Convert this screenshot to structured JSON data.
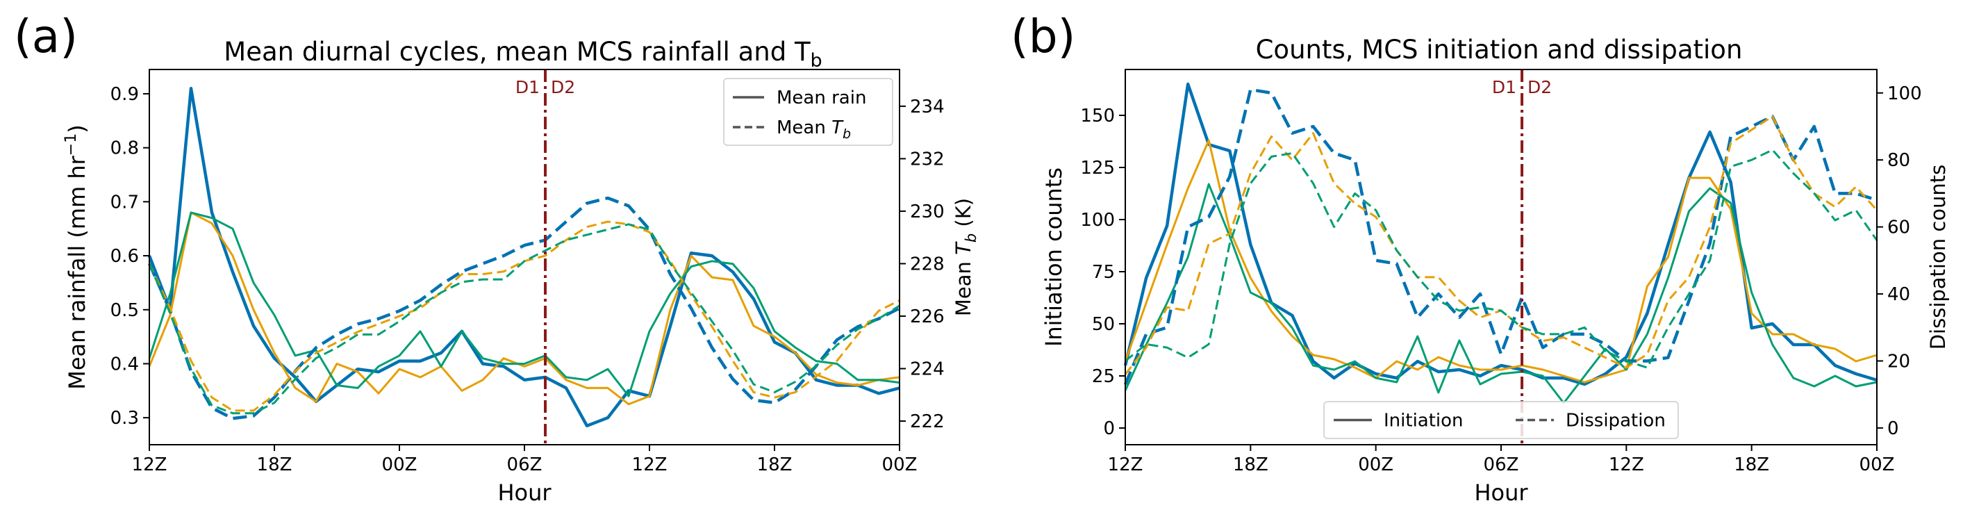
{
  "panels": [
    {
      "letter": "(a)",
      "title": "Mean diurnal cycles, mean MCS rainfall and T",
      "title_sub": "b"
    },
    {
      "letter": "(b)",
      "title": "Counts, MCS initiation and dissipation",
      "title_sub": ""
    }
  ],
  "chart_data": [
    {
      "type": "line",
      "title": "Mean diurnal cycles, mean MCS rainfall and T_b",
      "xlabel": "Hour",
      "ylabel": "Mean rainfall (mm hr⁻¹)",
      "ylabel_parts": [
        "Mean rainfall (mm hr",
        "−1",
        ")"
      ],
      "y2label": "Mean T_b (K)",
      "y2label_parts": [
        "Mean ",
        "T",
        "b",
        " (K)"
      ],
      "x_ticks": [
        0,
        6,
        12,
        18,
        24,
        30,
        36
      ],
      "x_tick_labels": [
        "12Z",
        "18Z",
        "00Z",
        "06Z",
        "12Z",
        "18Z",
        "00Z"
      ],
      "xlim": [
        0,
        36
      ],
      "ylim": [
        0.25,
        0.945
      ],
      "y_ticks": [
        0.3,
        0.4,
        0.5,
        0.6,
        0.7,
        0.8,
        0.9
      ],
      "y_tick_labels": [
        "0.3",
        "0.4",
        "0.5",
        "0.6",
        "0.7",
        "0.8",
        "0.9"
      ],
      "y2lim": [
        221.1,
        235.4
      ],
      "y2_ticks": [
        222,
        224,
        226,
        228,
        230,
        232,
        234
      ],
      "y2_tick_labels": [
        "222",
        "224",
        "226",
        "228",
        "230",
        "232",
        "234"
      ],
      "vline": {
        "x": 19,
        "left_label": "D1",
        "right_label": "D2",
        "color": "#8b1a1a"
      },
      "legend": {
        "position": "top-right",
        "entries": [
          "Mean rain",
          "Mean T_b"
        ],
        "entry_parts": [
          [
            "Mean rain"
          ],
          [
            "Mean ",
            "T",
            "b"
          ]
        ]
      },
      "legend_texts": [
        "Mean rain",
        "Mean T_b"
      ],
      "x": [
        0,
        1,
        2,
        3,
        4,
        5,
        6,
        7,
        8,
        9,
        10,
        11,
        12,
        13,
        14,
        15,
        16,
        17,
        18,
        19,
        20,
        21,
        22,
        23,
        24,
        25,
        26,
        27,
        28,
        29,
        30,
        31,
        32,
        33,
        34,
        35,
        36
      ],
      "series": [
        {
          "color": "#0072B2",
          "style": "solid",
          "width": 4.5,
          "axis": "left",
          "values": [
            0.6,
            0.5,
            0.91,
            0.68,
            0.57,
            0.47,
            0.41,
            0.375,
            0.33,
            0.36,
            0.39,
            0.385,
            0.405,
            0.405,
            0.42,
            0.46,
            0.4,
            0.395,
            0.37,
            0.375,
            0.355,
            0.285,
            0.3,
            0.35,
            0.34,
            0.47,
            0.605,
            0.6,
            0.57,
            0.52,
            0.44,
            0.42,
            0.37,
            0.36,
            0.36,
            0.345,
            0.355
          ]
        },
        {
          "color": "#E69F00",
          "style": "solid",
          "width": 3,
          "axis": "left",
          "values": [
            0.395,
            0.49,
            0.68,
            0.66,
            0.6,
            0.5,
            0.42,
            0.355,
            0.33,
            0.4,
            0.385,
            0.345,
            0.39,
            0.375,
            0.395,
            0.35,
            0.37,
            0.41,
            0.395,
            0.41,
            0.37,
            0.355,
            0.355,
            0.325,
            0.34,
            0.5,
            0.6,
            0.56,
            0.555,
            0.47,
            0.45,
            0.42,
            0.38,
            0.365,
            0.36,
            0.37,
            0.375
          ]
        },
        {
          "color": "#009E73",
          "style": "solid",
          "width": 3,
          "axis": "left",
          "values": [
            0.41,
            0.53,
            0.68,
            0.67,
            0.65,
            0.55,
            0.49,
            0.415,
            0.425,
            0.36,
            0.355,
            0.395,
            0.415,
            0.46,
            0.395,
            0.46,
            0.41,
            0.4,
            0.4,
            0.415,
            0.375,
            0.37,
            0.39,
            0.34,
            0.46,
            0.53,
            0.58,
            0.59,
            0.585,
            0.54,
            0.46,
            0.43,
            0.405,
            0.4,
            0.37,
            0.37,
            0.365
          ]
        },
        {
          "color": "#0072B2",
          "style": "dashed",
          "width": 4.5,
          "axis": "right",
          "values": [
            228,
            226.2,
            223.9,
            222.5,
            222.1,
            222.2,
            222.9,
            223.9,
            224.8,
            225.3,
            225.7,
            225.9,
            226.2,
            226.6,
            227.2,
            227.7,
            228,
            228.3,
            228.7,
            228.9,
            229.6,
            230.3,
            230.5,
            230.2,
            229.3,
            227.6,
            226.3,
            224.8,
            223.6,
            222.8,
            222.7,
            223.2,
            224.1,
            225.1,
            225.6,
            225.9,
            226.3
          ]
        },
        {
          "color": "#E69F00",
          "style": "dashed",
          "width": 3,
          "axis": "right",
          "values": [
            228,
            226.3,
            224.3,
            222.9,
            222.4,
            222.4,
            223,
            223.9,
            224.6,
            225,
            225.4,
            225.7,
            226,
            226.3,
            226.9,
            227.6,
            227.6,
            227.7,
            228.1,
            228.3,
            228.9,
            229.4,
            229.6,
            229.5,
            229.2,
            228.1,
            226.8,
            225.6,
            224.3,
            223.1,
            222.9,
            223.1,
            223.7,
            224.3,
            225.3,
            226.2,
            226.6
          ]
        },
        {
          "color": "#009E73",
          "style": "dashed",
          "width": 3,
          "axis": "right",
          "values": [
            228,
            226.1,
            224,
            222.6,
            222.3,
            222.3,
            222.7,
            223.6,
            224.4,
            224.8,
            225.3,
            225.3,
            225.8,
            226.4,
            226.9,
            227.3,
            227.4,
            227.4,
            228.1,
            228.5,
            228.9,
            229.1,
            229.3,
            229.5,
            229.3,
            228,
            226.9,
            225.8,
            224.7,
            223.4,
            223.1,
            223.5,
            224.1,
            224.9,
            225.5,
            225.9,
            226.4
          ]
        }
      ]
    },
    {
      "type": "line",
      "title": "Counts, MCS initiation and dissipation",
      "xlabel": "Hour",
      "ylabel": "Initiation counts",
      "y2label": "Dissipation counts",
      "x_ticks": [
        0,
        6,
        12,
        18,
        24,
        30,
        36
      ],
      "x_tick_labels": [
        "12Z",
        "18Z",
        "00Z",
        "06Z",
        "12Z",
        "18Z",
        "00Z"
      ],
      "xlim": [
        0,
        36
      ],
      "ylim": [
        -8,
        172
      ],
      "y_ticks": [
        0,
        25,
        50,
        75,
        100,
        125,
        150
      ],
      "y_tick_labels": [
        "0",
        "25",
        "50",
        "75",
        "100",
        "125",
        "150"
      ],
      "y2lim": [
        -5,
        107
      ],
      "y2_ticks": [
        0,
        20,
        40,
        60,
        80,
        100
      ],
      "y2_tick_labels": [
        "0",
        "20",
        "40",
        "60",
        "80",
        "100"
      ],
      "vline": {
        "x": 19,
        "left_label": "D1",
        "right_label": "D2",
        "color": "#8b1a1a"
      },
      "legend": {
        "position": "lower center",
        "entries": [
          "Initiation",
          "Dissipation"
        ],
        "entry_parts": [
          [
            "Initiation"
          ],
          [
            "Dissipation"
          ]
        ]
      },
      "legend_texts": [
        "Initiation",
        "Dissipation"
      ],
      "x": [
        0,
        1,
        2,
        3,
        4,
        5,
        6,
        7,
        8,
        9,
        10,
        11,
        12,
        13,
        14,
        15,
        16,
        17,
        18,
        19,
        20,
        21,
        22,
        23,
        24,
        25,
        26,
        27,
        28,
        29,
        30,
        31,
        32,
        33,
        34,
        35,
        36
      ],
      "series": [
        {
          "color": "#0072B2",
          "style": "solid",
          "width": 4.5,
          "axis": "left",
          "values": [
            30,
            72,
            97,
            165,
            136,
            133,
            88,
            60,
            54,
            32,
            24,
            31,
            26,
            24,
            32,
            27,
            28,
            25,
            30,
            28,
            24,
            24,
            21,
            26,
            34,
            55,
            88,
            120,
            142,
            118,
            48,
            50,
            40,
            40,
            30,
            26,
            23
          ]
        },
        {
          "color": "#E69F00",
          "style": "solid",
          "width": 3,
          "axis": "left",
          "values": [
            32,
            60,
            88,
            115,
            138,
            95,
            72,
            56,
            44,
            35,
            33,
            29,
            24,
            32,
            28,
            34,
            30,
            28,
            28,
            30,
            28,
            25,
            22,
            25,
            28,
            68,
            82,
            120,
            120,
            105,
            55,
            45,
            45,
            40,
            38,
            32,
            35
          ]
        },
        {
          "color": "#009E73",
          "style": "solid",
          "width": 3,
          "axis": "left",
          "values": [
            18,
            40,
            60,
            82,
            117,
            92,
            65,
            60,
            48,
            30,
            28,
            32,
            24,
            22,
            44,
            17,
            42,
            21,
            26,
            27,
            25,
            12,
            25,
            38,
            28,
            45,
            72,
            104,
            115,
            108,
            65,
            40,
            24,
            20,
            25,
            20,
            22
          ]
        },
        {
          "color": "#0072B2",
          "style": "dashed",
          "width": 4.5,
          "axis": "right",
          "values": [
            13,
            28,
            30,
            60,
            63,
            75,
            101,
            100,
            88,
            90,
            82,
            80,
            50,
            49,
            33,
            40,
            33,
            40,
            22,
            39,
            24,
            28,
            28,
            25,
            20,
            20,
            21,
            38,
            55,
            87,
            90,
            93,
            80,
            90,
            70,
            70,
            68
          ]
        },
        {
          "color": "#E69F00",
          "style": "dashed",
          "width": 3,
          "axis": "right",
          "values": [
            16,
            24,
            36,
            35,
            55,
            58,
            76,
            87,
            80,
            88,
            73,
            67,
            63,
            53,
            45,
            45,
            38,
            33,
            35,
            30,
            26,
            27,
            24,
            21,
            18,
            22,
            38,
            45,
            60,
            85,
            89,
            93,
            80,
            70,
            66,
            72,
            65
          ]
        },
        {
          "color": "#009E73",
          "style": "dashed",
          "width": 3,
          "axis": "right",
          "values": [
            20,
            25,
            24,
            21,
            25,
            55,
            73,
            81,
            82,
            73,
            60,
            70,
            65,
            53,
            45,
            38,
            35,
            36,
            35,
            30,
            28,
            28,
            30,
            23,
            20,
            18,
            30,
            40,
            50,
            78,
            80,
            83,
            76,
            70,
            62,
            65,
            56
          ]
        }
      ]
    }
  ]
}
